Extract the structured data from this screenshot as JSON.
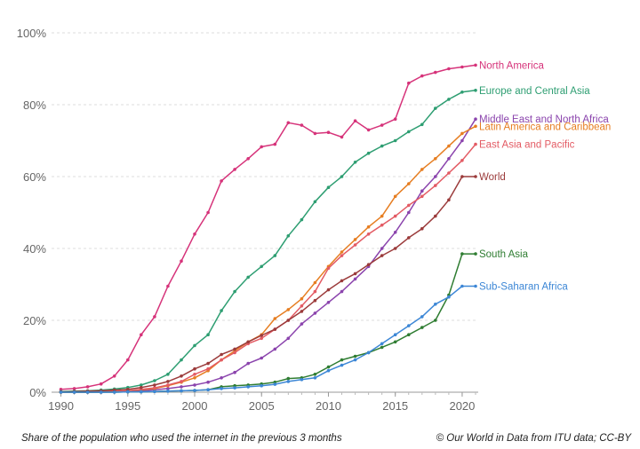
{
  "chart_data": {
    "type": "line",
    "title": "",
    "xlabel": "",
    "ylabel": "",
    "x": [
      1990,
      1991,
      1992,
      1993,
      1994,
      1995,
      1996,
      1997,
      1998,
      1999,
      2000,
      2001,
      2002,
      2003,
      2004,
      2005,
      2006,
      2007,
      2008,
      2009,
      2010,
      2011,
      2012,
      2013,
      2014,
      2015,
      2016,
      2017,
      2018,
      2019,
      2020,
      2021
    ],
    "xlim": [
      1989.3,
      2021.2
    ],
    "ylim": [
      0,
      100
    ],
    "x_ticks": [
      1990,
      1995,
      2000,
      2005,
      2010,
      2015,
      2020
    ],
    "y_ticks": [
      0,
      20,
      40,
      60,
      80,
      100
    ],
    "y_tick_labels": [
      "0%",
      "20%",
      "40%",
      "60%",
      "80%",
      "100%"
    ],
    "grid": "horizontal dashed",
    "legend": "labels at line ends",
    "series": [
      {
        "name": "North America",
        "color": "#d6337a",
        "values": [
          0.8,
          1.0,
          1.5,
          2.3,
          4.5,
          9.0,
          16.0,
          21.0,
          29.5,
          36.5,
          44.0,
          50.0,
          58.8,
          62.0,
          65.0,
          68.3,
          69.0,
          75.0,
          74.3,
          72.0,
          72.3,
          71.0,
          75.5,
          73.0,
          74.3,
          76.0,
          86.0,
          88.0,
          89.0,
          90.0,
          90.5,
          91.0
        ]
      },
      {
        "name": "Europe and Central Asia",
        "color": "#2e9e72",
        "values": [
          0.2,
          0.3,
          0.4,
          0.6,
          0.9,
          1.3,
          2.0,
          3.2,
          5.0,
          9.0,
          13.0,
          16.0,
          22.7,
          28.0,
          32.0,
          35.0,
          38.0,
          43.5,
          48.0,
          53.0,
          57.0,
          60.0,
          64.0,
          66.5,
          68.5,
          70.0,
          72.5,
          74.5,
          79.0,
          81.5,
          83.5,
          84.0
        ]
      },
      {
        "name": "Middle East and North Africa",
        "color": "#8b44ad",
        "values": [
          0.0,
          0.0,
          0.0,
          0.0,
          0.1,
          0.2,
          0.4,
          0.7,
          1.0,
          1.5,
          2.0,
          2.8,
          4.0,
          5.5,
          8.0,
          9.5,
          12.0,
          15.0,
          19.0,
          22.0,
          25.0,
          28.0,
          31.5,
          35.0,
          40.0,
          44.5,
          50.0,
          56.0,
          60.0,
          65.0,
          70.0,
          76.0
        ]
      },
      {
        "name": "Latin America and Caribbean",
        "color": "#e67e22",
        "values": [
          0.0,
          0.0,
          0.0,
          0.1,
          0.2,
          0.4,
          0.7,
          1.0,
          1.8,
          2.8,
          4.0,
          6.0,
          9.0,
          11.5,
          14.0,
          16.0,
          20.5,
          23.0,
          26.0,
          30.5,
          35.0,
          39.0,
          42.5,
          46.0,
          49.0,
          54.5,
          58.0,
          62.0,
          65.0,
          68.5,
          72.0,
          74.0
        ]
      },
      {
        "name": "East Asia and Pacific",
        "color": "#e35b64",
        "values": [
          0.0,
          0.0,
          0.0,
          0.1,
          0.2,
          0.4,
          0.8,
          1.2,
          2.0,
          3.0,
          5.0,
          6.5,
          9.0,
          11.0,
          13.5,
          15.0,
          17.5,
          20.0,
          24.0,
          28.0,
          34.5,
          38.0,
          41.0,
          44.0,
          46.5,
          49.0,
          52.0,
          54.5,
          57.5,
          61.0,
          64.5,
          69.0
        ]
      },
      {
        "name": "World",
        "color": "#9b3b3b",
        "values": [
          0.1,
          0.2,
          0.3,
          0.4,
          0.6,
          0.8,
          1.3,
          2.0,
          3.0,
          4.5,
          6.5,
          8.0,
          10.5,
          12.0,
          14.0,
          15.8,
          17.5,
          20.0,
          22.5,
          25.5,
          28.5,
          31.0,
          33.0,
          35.5,
          38.0,
          40.0,
          43.0,
          45.5,
          49.0,
          53.5,
          60.0,
          60.0
        ]
      },
      {
        "name": "South Asia",
        "color": "#2f7d32",
        "values": [
          0.0,
          0.0,
          0.0,
          0.0,
          0.0,
          0.1,
          0.1,
          0.2,
          0.3,
          0.4,
          0.5,
          0.7,
          1.5,
          1.8,
          2.0,
          2.3,
          2.8,
          3.8,
          4.0,
          5.0,
          7.0,
          9.0,
          10.0,
          11.0,
          12.5,
          14.0,
          16.0,
          18.0,
          20.0,
          27.0,
          38.5,
          38.5
        ]
      },
      {
        "name": "Sub-Saharan Africa",
        "color": "#3d87d6",
        "values": [
          0.0,
          0.0,
          0.0,
          0.0,
          0.0,
          0.1,
          0.1,
          0.2,
          0.3,
          0.4,
          0.5,
          0.7,
          1.0,
          1.2,
          1.5,
          1.8,
          2.2,
          3.0,
          3.5,
          4.0,
          6.0,
          7.5,
          9.0,
          11.0,
          13.5,
          16.0,
          18.5,
          21.0,
          24.5,
          26.5,
          29.5,
          29.5
        ]
      }
    ],
    "label_offsets": {
      "North America": 0,
      "Europe and Central Asia": 0,
      "Middle East and North Africa": 0,
      "Latin America and Caribbean": 0,
      "East Asia and Pacific": 0,
      "World": 0,
      "South Asia": 0,
      "Sub-Saharan Africa": 0
    }
  },
  "footer": {
    "note": "Share of the population who used the internet in the previous 3 months",
    "source": "© Our World in Data from ITU data; CC-BY"
  }
}
